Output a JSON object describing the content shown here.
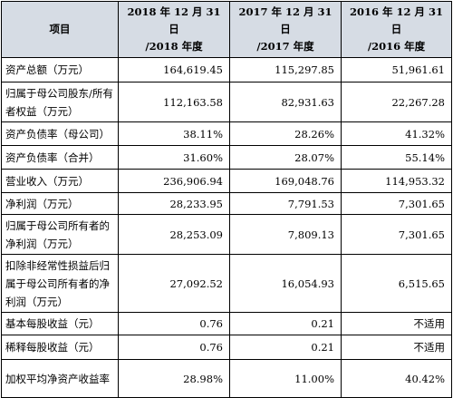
{
  "table": {
    "headers": [
      {
        "line1": "项目",
        "line2": ""
      },
      {
        "line1": "2018 年 12 月 31 日",
        "line2": "/2018 年度"
      },
      {
        "line1": "2017 年 12 月 31 日",
        "line2": "/2017 年度"
      },
      {
        "line1": "2016 年 12 月 31 日",
        "line2": "/2016 年度"
      }
    ],
    "rows": [
      {
        "label": "资产总额（万元）",
        "v2018": "164,619.45",
        "v2017": "115,297.85",
        "v2016": "51,961.61"
      },
      {
        "label": "归属于母公司股东/所有者权益（万元）",
        "v2018": "112,163.58",
        "v2017": "82,931.63",
        "v2016": "22,267.28"
      },
      {
        "label": "资产负债率（母公司）",
        "v2018": "38.11%",
        "v2017": "28.26%",
        "v2016": "41.32%"
      },
      {
        "label": "资产负债率（合并）",
        "v2018": "31.60%",
        "v2017": "28.07%",
        "v2016": "55.14%"
      },
      {
        "label": "营业收入（万元）",
        "v2018": "236,906.94",
        "v2017": "169,048.76",
        "v2016": "114,953.32"
      },
      {
        "label": "净利润（万元）",
        "v2018": "28,233.95",
        "v2017": "7,791.53",
        "v2016": "7,301.65"
      },
      {
        "label": "归属于母公司所有者的净利润（万元）",
        "v2018": "28,253.09",
        "v2017": "7,809.13",
        "v2016": "7,301.65"
      },
      {
        "label": "扣除非经常性损益后归属于母公司所有者的净利润（万元）",
        "v2018": "27,092.52",
        "v2017": "16,054.93",
        "v2016": "6,515.65"
      },
      {
        "label": "基本每股收益（元）",
        "v2018": "0.76",
        "v2017": "0.21",
        "v2016": "不适用"
      },
      {
        "label": "稀释每股收益（元）",
        "v2018": "0.76",
        "v2017": "0.21",
        "v2016": "不适用"
      },
      {
        "label": "加权平均净资产收益率",
        "v2018": "28.98%",
        "v2017": "11.00%",
        "v2016": "40.42%"
      }
    ]
  }
}
